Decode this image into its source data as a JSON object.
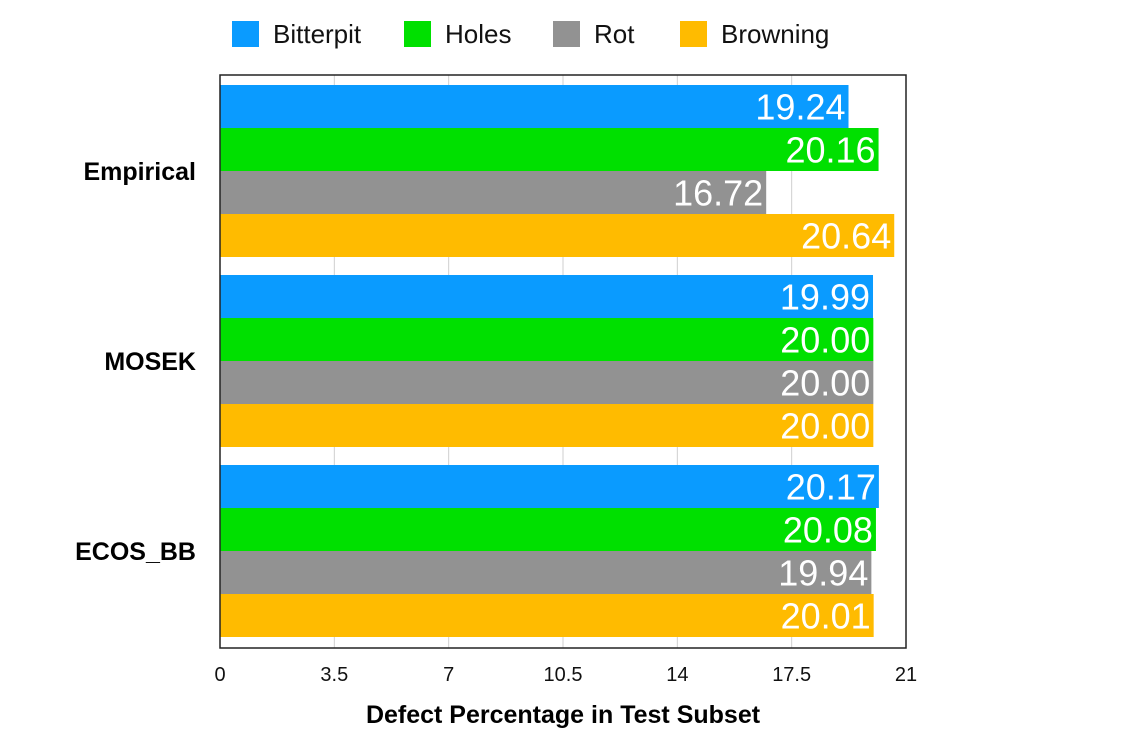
{
  "chart_data": {
    "type": "bar",
    "orientation": "horizontal",
    "categories": [
      "Empirical",
      "MOSEK",
      "ECOS_BB"
    ],
    "series": [
      {
        "name": "Bitterpit",
        "color": "#0a9bff",
        "values": [
          19.24,
          19.99,
          20.17
        ],
        "labels": [
          "19.24",
          "19.99",
          "20.17"
        ]
      },
      {
        "name": "Holes",
        "color": "#00e000",
        "values": [
          20.16,
          20.0,
          20.08
        ],
        "labels": [
          "20.16",
          "20.00",
          "20.08"
        ]
      },
      {
        "name": "Rot",
        "color": "#929292",
        "values": [
          16.72,
          20.0,
          19.94
        ],
        "labels": [
          "16.72",
          "20.00",
          "19.94"
        ]
      },
      {
        "name": "Browning",
        "color": "#ffbb00",
        "values": [
          20.64,
          20.0,
          20.01
        ],
        "labels": [
          "20.64",
          "20.00",
          "20.01"
        ]
      }
    ],
    "xlabel": "Defect Percentage in Test Subset",
    "ylabel": "",
    "xlim": [
      0,
      21
    ],
    "xticks": [
      "0",
      "3.5",
      "7",
      "10.5",
      "14",
      "17.5",
      "21"
    ],
    "grid": true,
    "legend_position": "top-center"
  }
}
